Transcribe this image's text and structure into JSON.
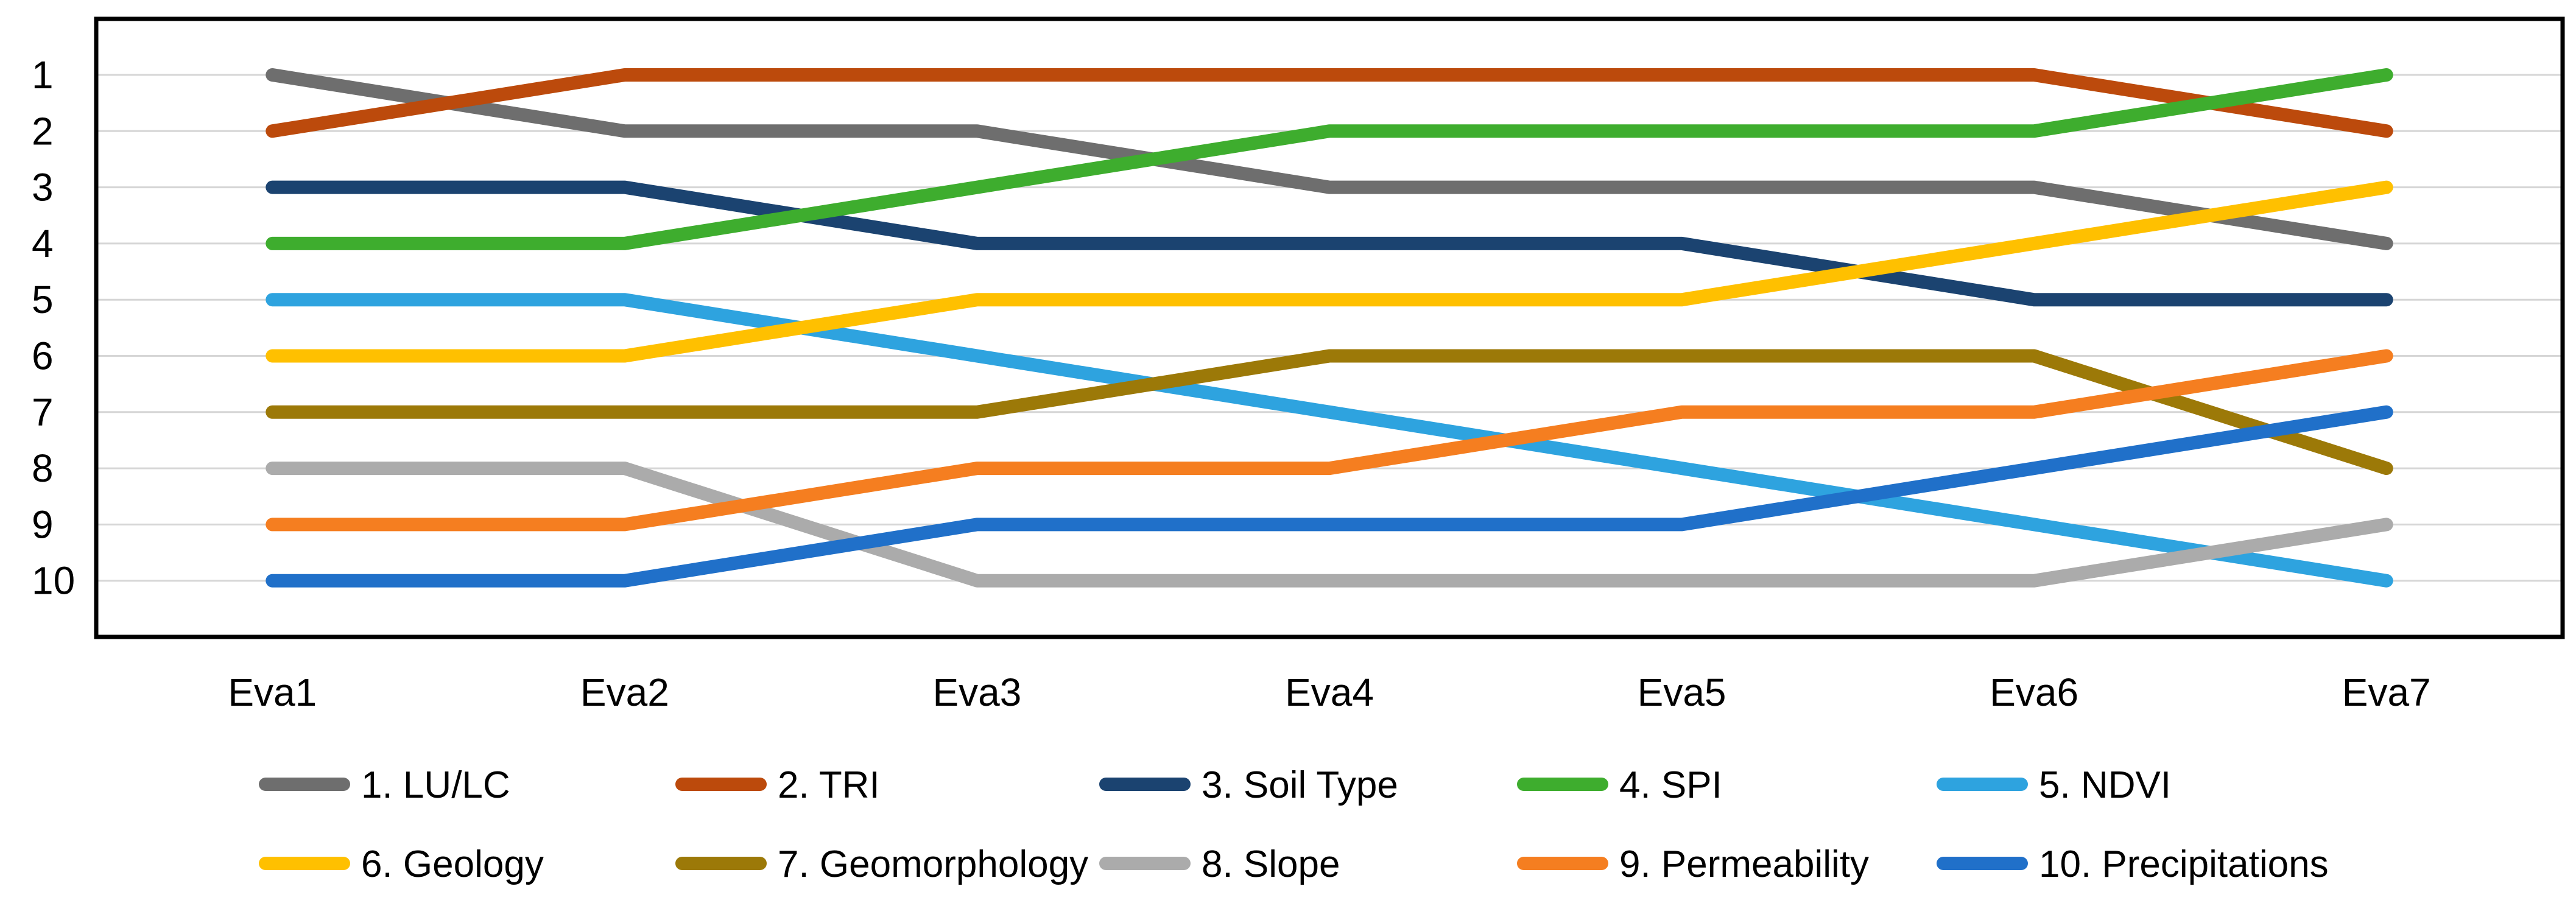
{
  "chart_data": {
    "type": "line",
    "subtype": "bump-ranking",
    "categories": [
      "Eva1",
      "Eva2",
      "Eva3",
      "Eva4",
      "Eva5",
      "Eva6",
      "Eva7"
    ],
    "y_axis": {
      "tick_labels": [
        "1",
        "2",
        "3",
        "4",
        "5",
        "6",
        "7",
        "8",
        "9",
        "10"
      ],
      "min": 1,
      "max": 10,
      "inverted": true,
      "meaning": "rank (1 = highest importance)"
    },
    "xlabel": "",
    "ylabel": "",
    "grid": "horizontal",
    "legend_position": "bottom",
    "series": [
      {
        "name": "1. LU/LC",
        "color": "#6E6E6E",
        "values": [
          1,
          2,
          2,
          3,
          3,
          3,
          4
        ]
      },
      {
        "name": "2. TRI",
        "color": "#BC4A0C",
        "values": [
          2,
          1,
          1,
          1,
          1,
          1,
          2
        ]
      },
      {
        "name": "3. Soil Type",
        "color": "#1B4370",
        "values": [
          3,
          3,
          4,
          4,
          4,
          5,
          5
        ]
      },
      {
        "name": "4. SPI",
        "color": "#3EAD2E",
        "values": [
          4,
          4,
          3,
          2,
          2,
          2,
          1
        ]
      },
      {
        "name": "5. NDVI",
        "color": "#2EA3DF",
        "values": [
          5,
          5,
          6,
          7,
          8,
          9,
          10
        ]
      },
      {
        "name": "6. Geology",
        "color": "#FFC000",
        "values": [
          6,
          6,
          5,
          5,
          5,
          4,
          3
        ]
      },
      {
        "name": "7. Geomorphology",
        "color": "#9C7908",
        "values": [
          7,
          7,
          7,
          6,
          6,
          6,
          8
        ]
      },
      {
        "name": "8. Slope",
        "color": "#ABABAB",
        "values": [
          8,
          8,
          10,
          10,
          10,
          10,
          9
        ]
      },
      {
        "name": "9. Permeability",
        "color": "#F57E20",
        "values": [
          9,
          9,
          8,
          8,
          7,
          7,
          6
        ]
      },
      {
        "name": "10. Precipitations",
        "color": "#2070C9",
        "values": [
          10,
          10,
          9,
          9,
          9,
          8,
          7
        ]
      }
    ],
    "style_colors": {
      "gridline": "#D6D6D6",
      "plot_border": "#000000",
      "background": "#FFFFFF",
      "text": "#000000"
    }
  }
}
